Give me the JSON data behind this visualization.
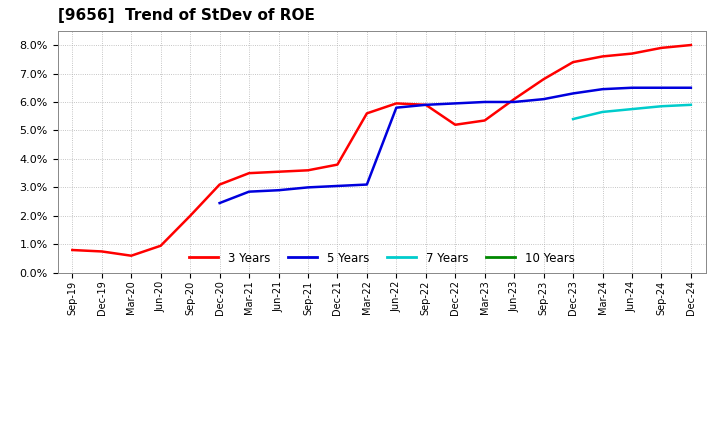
{
  "title": "[9656]  Trend of StDev of ROE",
  "title_fontsize": 11,
  "ylim": [
    0.0,
    0.085
  ],
  "yticks": [
    0.0,
    0.01,
    0.02,
    0.03,
    0.04,
    0.05,
    0.06,
    0.07,
    0.08
  ],
  "background_color": "#ffffff",
  "grid_color": "#aaaaaa",
  "x_labels": [
    "Sep-19",
    "Dec-19",
    "Mar-20",
    "Jun-20",
    "Sep-20",
    "Dec-20",
    "Mar-21",
    "Jun-21",
    "Sep-21",
    "Dec-21",
    "Mar-22",
    "Jun-22",
    "Sep-22",
    "Dec-22",
    "Mar-23",
    "Jun-23",
    "Sep-23",
    "Dec-23",
    "Mar-24",
    "Jun-24",
    "Sep-24",
    "Dec-24"
  ],
  "series": {
    "3 Years": {
      "color": "#ff0000",
      "linewidth": 1.8,
      "values": [
        0.008,
        0.0075,
        0.006,
        0.0095,
        0.02,
        0.031,
        0.035,
        0.0355,
        0.036,
        0.038,
        0.056,
        0.0595,
        0.059,
        0.052,
        0.0535,
        0.061,
        0.068,
        0.074,
        0.076,
        0.077,
        0.079,
        0.08
      ]
    },
    "5 Years": {
      "color": "#0000dd",
      "linewidth": 1.8,
      "values": [
        null,
        null,
        null,
        null,
        null,
        0.0245,
        0.0285,
        0.029,
        0.03,
        0.0305,
        0.031,
        0.058,
        0.059,
        0.0595,
        0.06,
        0.06,
        0.061,
        0.063,
        0.0645,
        0.065,
        0.065,
        0.065
      ]
    },
    "7 Years": {
      "color": "#00cccc",
      "linewidth": 1.8,
      "values": [
        null,
        null,
        null,
        null,
        null,
        null,
        null,
        null,
        null,
        null,
        null,
        null,
        null,
        null,
        null,
        null,
        null,
        0.054,
        0.0565,
        0.0575,
        0.0585,
        0.059
      ]
    },
    "10 Years": {
      "color": "#008800",
      "linewidth": 1.8,
      "values": [
        null,
        null,
        null,
        null,
        null,
        null,
        null,
        null,
        null,
        null,
        null,
        null,
        null,
        null,
        null,
        null,
        null,
        null,
        null,
        null,
        null,
        null
      ]
    }
  },
  "legend_entries": [
    "3 Years",
    "5 Years",
    "7 Years",
    "10 Years"
  ],
  "legend_colors": [
    "#ff0000",
    "#0000dd",
    "#00cccc",
    "#008800"
  ]
}
